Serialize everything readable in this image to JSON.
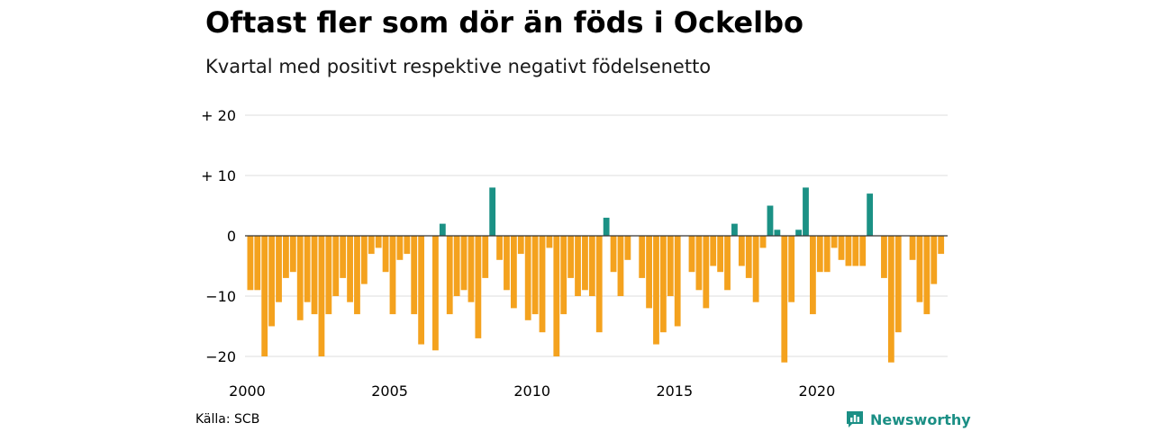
{
  "title": "Oftast fler som dör än föds i Ockelbo",
  "subtitle": "Kvartal med positivt respektive negativt födelsenetto",
  "source": "Källa: SCB",
  "brand": "Newsworthy",
  "colors": {
    "positive": "#1b9185",
    "negative": "#f4a21e",
    "gridline": "#dddddd",
    "zeroline": "#333333"
  },
  "chart_data": {
    "type": "bar",
    "title": "Oftast fler som dör än föds i Ockelbo",
    "subtitle": "Kvartal med positivt respektive negativt födelsenetto",
    "xlabel": "",
    "ylabel": "",
    "ylim": [
      -22,
      20
    ],
    "yticks": [
      {
        "value": 20,
        "label": "+ 20"
      },
      {
        "value": 10,
        "label": "+ 10"
      },
      {
        "value": 0,
        "label": "0"
      },
      {
        "value": -10,
        "label": "−10"
      },
      {
        "value": -20,
        "label": "−20"
      }
    ],
    "xticks": [
      "2000",
      "2005",
      "2010",
      "2015",
      "2020"
    ],
    "start_year": 2000,
    "grid": true,
    "legend": "none",
    "values": [
      -9,
      -9,
      -20,
      -15,
      -11,
      -7,
      -6,
      -14,
      -11,
      -13,
      -20,
      -13,
      -10,
      -7,
      -11,
      -13,
      -8,
      -3,
      -2,
      -6,
      -13,
      -4,
      -3,
      -13,
      -18,
      0,
      -19,
      2,
      -13,
      -10,
      -9,
      -11,
      -17,
      -7,
      8,
      -4,
      -9,
      -12,
      -3,
      -14,
      -13,
      -16,
      -2,
      -20,
      -13,
      -7,
      -10,
      -9,
      -10,
      -16,
      3,
      -6,
      -10,
      -4,
      0,
      -7,
      -12,
      -18,
      -16,
      -10,
      -15,
      0,
      -6,
      -9,
      -12,
      -5,
      -6,
      -9,
      2,
      -5,
      -7,
      -11,
      -2,
      5,
      1,
      -21,
      -11,
      1,
      8,
      -13,
      -6,
      -6,
      -2,
      -4,
      -5,
      -5,
      -5,
      7,
      0,
      -7,
      -21,
      -16,
      0,
      -4,
      -11,
      -13,
      -8,
      -3
    ]
  }
}
